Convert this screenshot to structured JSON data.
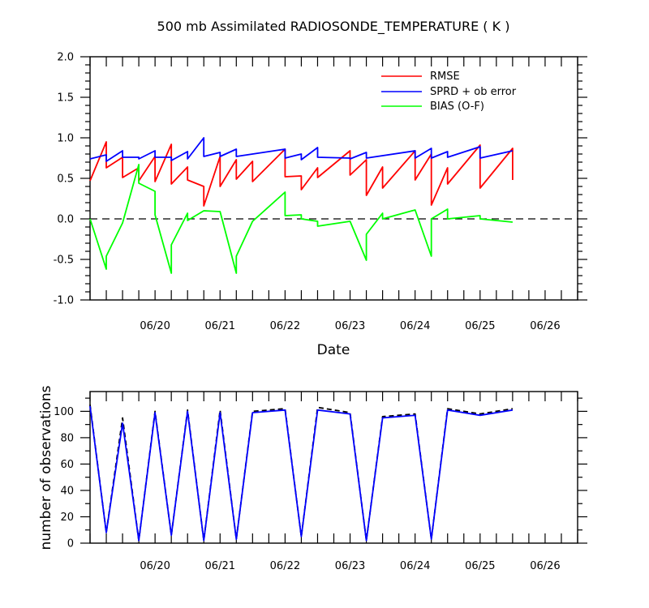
{
  "chart_data": [
    {
      "type": "line",
      "title": "500 mb Assimilated RADIOSONDE_TEMPERATURE ( K )",
      "xlabel": "Date",
      "ylabel": "",
      "ylim": [
        -1.0,
        2.0
      ],
      "yticks": [
        "2.0",
        "1.5",
        "1.0",
        "0.5",
        "0.0",
        "-0.5",
        "-1.0"
      ],
      "xlim": [
        0,
        7.5
      ],
      "xtick_labels": [
        "06/20",
        "06/21",
        "06/22",
        "06/23",
        "06/24",
        "06/25",
        "06/26"
      ],
      "reference_line": 0,
      "legend_position": "top-right",
      "series": [
        {
          "name": "RMSE",
          "color": "#ff0000",
          "points": [
            [
              0,
              0.47
            ],
            [
              0.25,
              0.95
            ],
            [
              0.25,
              0.63
            ],
            [
              0.5,
              0.76
            ],
            [
              0.5,
              0.51
            ],
            [
              0.75,
              0.63
            ],
            [
              0.75,
              0.47
            ],
            [
              1.0,
              0.77
            ],
            [
              1.0,
              0.46
            ],
            [
              1.25,
              0.92
            ],
            [
              1.25,
              0.43
            ],
            [
              1.5,
              0.64
            ],
            [
              1.5,
              0.48
            ],
            [
              1.75,
              0.4
            ],
            [
              1.75,
              0.16
            ],
            [
              2.0,
              0.77
            ],
            [
              2.0,
              0.4
            ],
            [
              2.25,
              0.73
            ],
            [
              2.25,
              0.49
            ],
            [
              2.5,
              0.71
            ],
            [
              2.5,
              0.46
            ],
            [
              3.0,
              0.86
            ],
            [
              3.0,
              0.52
            ],
            [
              3.25,
              0.53
            ],
            [
              3.25,
              0.36
            ],
            [
              3.5,
              0.63
            ],
            [
              3.5,
              0.51
            ],
            [
              4.0,
              0.84
            ],
            [
              4.0,
              0.54
            ],
            [
              4.25,
              0.73
            ],
            [
              4.25,
              0.29
            ],
            [
              4.5,
              0.64
            ],
            [
              4.5,
              0.38
            ],
            [
              5.0,
              0.84
            ],
            [
              5.0,
              0.48
            ],
            [
              5.25,
              0.8
            ],
            [
              5.25,
              0.17
            ],
            [
              5.5,
              0.63
            ],
            [
              5.5,
              0.43
            ],
            [
              6.0,
              0.91
            ],
            [
              6.0,
              0.38
            ],
            [
              6.5,
              0.87
            ],
            [
              6.5,
              0.48
            ]
          ]
        },
        {
          "name": "SPRD + ob error",
          "color": "#0000ff",
          "points": [
            [
              0,
              0.74
            ],
            [
              0.25,
              0.79
            ],
            [
              0.25,
              0.71
            ],
            [
              0.5,
              0.84
            ],
            [
              0.5,
              0.76
            ],
            [
              0.75,
              0.76
            ],
            [
              0.75,
              0.74
            ],
            [
              1.0,
              0.84
            ],
            [
              1.0,
              0.76
            ],
            [
              1.25,
              0.76
            ],
            [
              1.25,
              0.72
            ],
            [
              1.5,
              0.83
            ],
            [
              1.5,
              0.74
            ],
            [
              1.75,
              1.0
            ],
            [
              1.75,
              0.77
            ],
            [
              2.0,
              0.82
            ],
            [
              2.0,
              0.77
            ],
            [
              2.25,
              0.86
            ],
            [
              2.25,
              0.77
            ],
            [
              3.0,
              0.86
            ],
            [
              3.0,
              0.75
            ],
            [
              3.25,
              0.8
            ],
            [
              3.25,
              0.73
            ],
            [
              3.5,
              0.88
            ],
            [
              3.5,
              0.76
            ],
            [
              4.0,
              0.75
            ],
            [
              4.0,
              0.74
            ],
            [
              4.25,
              0.82
            ],
            [
              4.25,
              0.75
            ],
            [
              5.0,
              0.84
            ],
            [
              5.0,
              0.75
            ],
            [
              5.25,
              0.87
            ],
            [
              5.25,
              0.75
            ],
            [
              5.5,
              0.83
            ],
            [
              5.5,
              0.76
            ],
            [
              6.0,
              0.89
            ],
            [
              6.0,
              0.75
            ],
            [
              6.5,
              0.84
            ]
          ]
        },
        {
          "name": "BIAS (O-F)",
          "color": "#00ff00",
          "points": [
            [
              0,
              0.0
            ],
            [
              0.25,
              -0.62
            ],
            [
              0.25,
              -0.46
            ],
            [
              0.5,
              -0.05
            ],
            [
              0.75,
              0.67
            ],
            [
              0.75,
              0.44
            ],
            [
              1.0,
              0.34
            ],
            [
              1.0,
              0.05
            ],
            [
              1.25,
              -0.67
            ],
            [
              1.25,
              -0.32
            ],
            [
              1.5,
              0.07
            ],
            [
              1.5,
              -0.02
            ],
            [
              1.75,
              0.1
            ],
            [
              1.75,
              0.1
            ],
            [
              2.0,
              0.09
            ],
            [
              2.25,
              -0.67
            ],
            [
              2.25,
              -0.46
            ],
            [
              2.5,
              -0.03
            ],
            [
              3.0,
              0.33
            ],
            [
              3.0,
              0.04
            ],
            [
              3.25,
              0.05
            ],
            [
              3.25,
              0.0
            ],
            [
              3.5,
              -0.03
            ],
            [
              3.5,
              -0.09
            ],
            [
              4.0,
              -0.03
            ],
            [
              4.25,
              -0.51
            ],
            [
              4.25,
              -0.19
            ],
            [
              4.5,
              0.07
            ],
            [
              4.5,
              0.0
            ],
            [
              5.0,
              0.11
            ],
            [
              5.25,
              -0.46
            ],
            [
              5.25,
              0.0
            ],
            [
              5.5,
              0.12
            ],
            [
              5.5,
              0.0
            ],
            [
              6.0,
              0.04
            ],
            [
              6.0,
              0.0
            ],
            [
              6.5,
              -0.04
            ]
          ]
        }
      ]
    },
    {
      "type": "line",
      "title": "",
      "xlabel": "",
      "ylabel": "number of observations",
      "ylim": [
        0,
        115
      ],
      "yticks": [
        "100",
        "80",
        "60",
        "40",
        "20",
        "0"
      ],
      "xlim": [
        0,
        7.5
      ],
      "xtick_labels": [
        "06/20",
        "06/21",
        "06/22",
        "06/23",
        "06/24",
        "06/25",
        "06/26"
      ],
      "series": [
        {
          "name": "",
          "color": "#000000",
          "style": "dashed",
          "points": [
            [
              0,
              105
            ],
            [
              0.25,
              8
            ],
            [
              0.5,
              95
            ],
            [
              0.75,
              2
            ],
            [
              1.0,
              100
            ],
            [
              1.25,
              6
            ],
            [
              1.5,
              101
            ],
            [
              1.75,
              2
            ],
            [
              2.0,
              101
            ],
            [
              2.25,
              3
            ],
            [
              2.5,
              100
            ],
            [
              3.0,
              102
            ],
            [
              3.25,
              5
            ],
            [
              3.5,
              103
            ],
            [
              4.0,
              99
            ],
            [
              4.25,
              2
            ],
            [
              4.5,
              96
            ],
            [
              5.0,
              98
            ],
            [
              5.25,
              3
            ],
            [
              5.5,
              102
            ],
            [
              6.0,
              98
            ],
            [
              6.5,
              102
            ]
          ]
        },
        {
          "name": "",
          "color": "#0000ff",
          "style": "solid",
          "points": [
            [
              0,
              104
            ],
            [
              0.25,
              8
            ],
            [
              0.5,
              91
            ],
            [
              0.75,
              2
            ],
            [
              1.0,
              99
            ],
            [
              1.25,
              6
            ],
            [
              1.5,
              100
            ],
            [
              1.75,
              2
            ],
            [
              2.0,
              99
            ],
            [
              2.25,
              3
            ],
            [
              2.5,
              99
            ],
            [
              3.0,
              101
            ],
            [
              3.25,
              5
            ],
            [
              3.5,
              101
            ],
            [
              4.0,
              98
            ],
            [
              4.25,
              2
            ],
            [
              4.5,
              95
            ],
            [
              5.0,
              97
            ],
            [
              5.25,
              3
            ],
            [
              5.5,
              101
            ],
            [
              6.0,
              97
            ],
            [
              6.5,
              101
            ]
          ]
        }
      ]
    }
  ]
}
